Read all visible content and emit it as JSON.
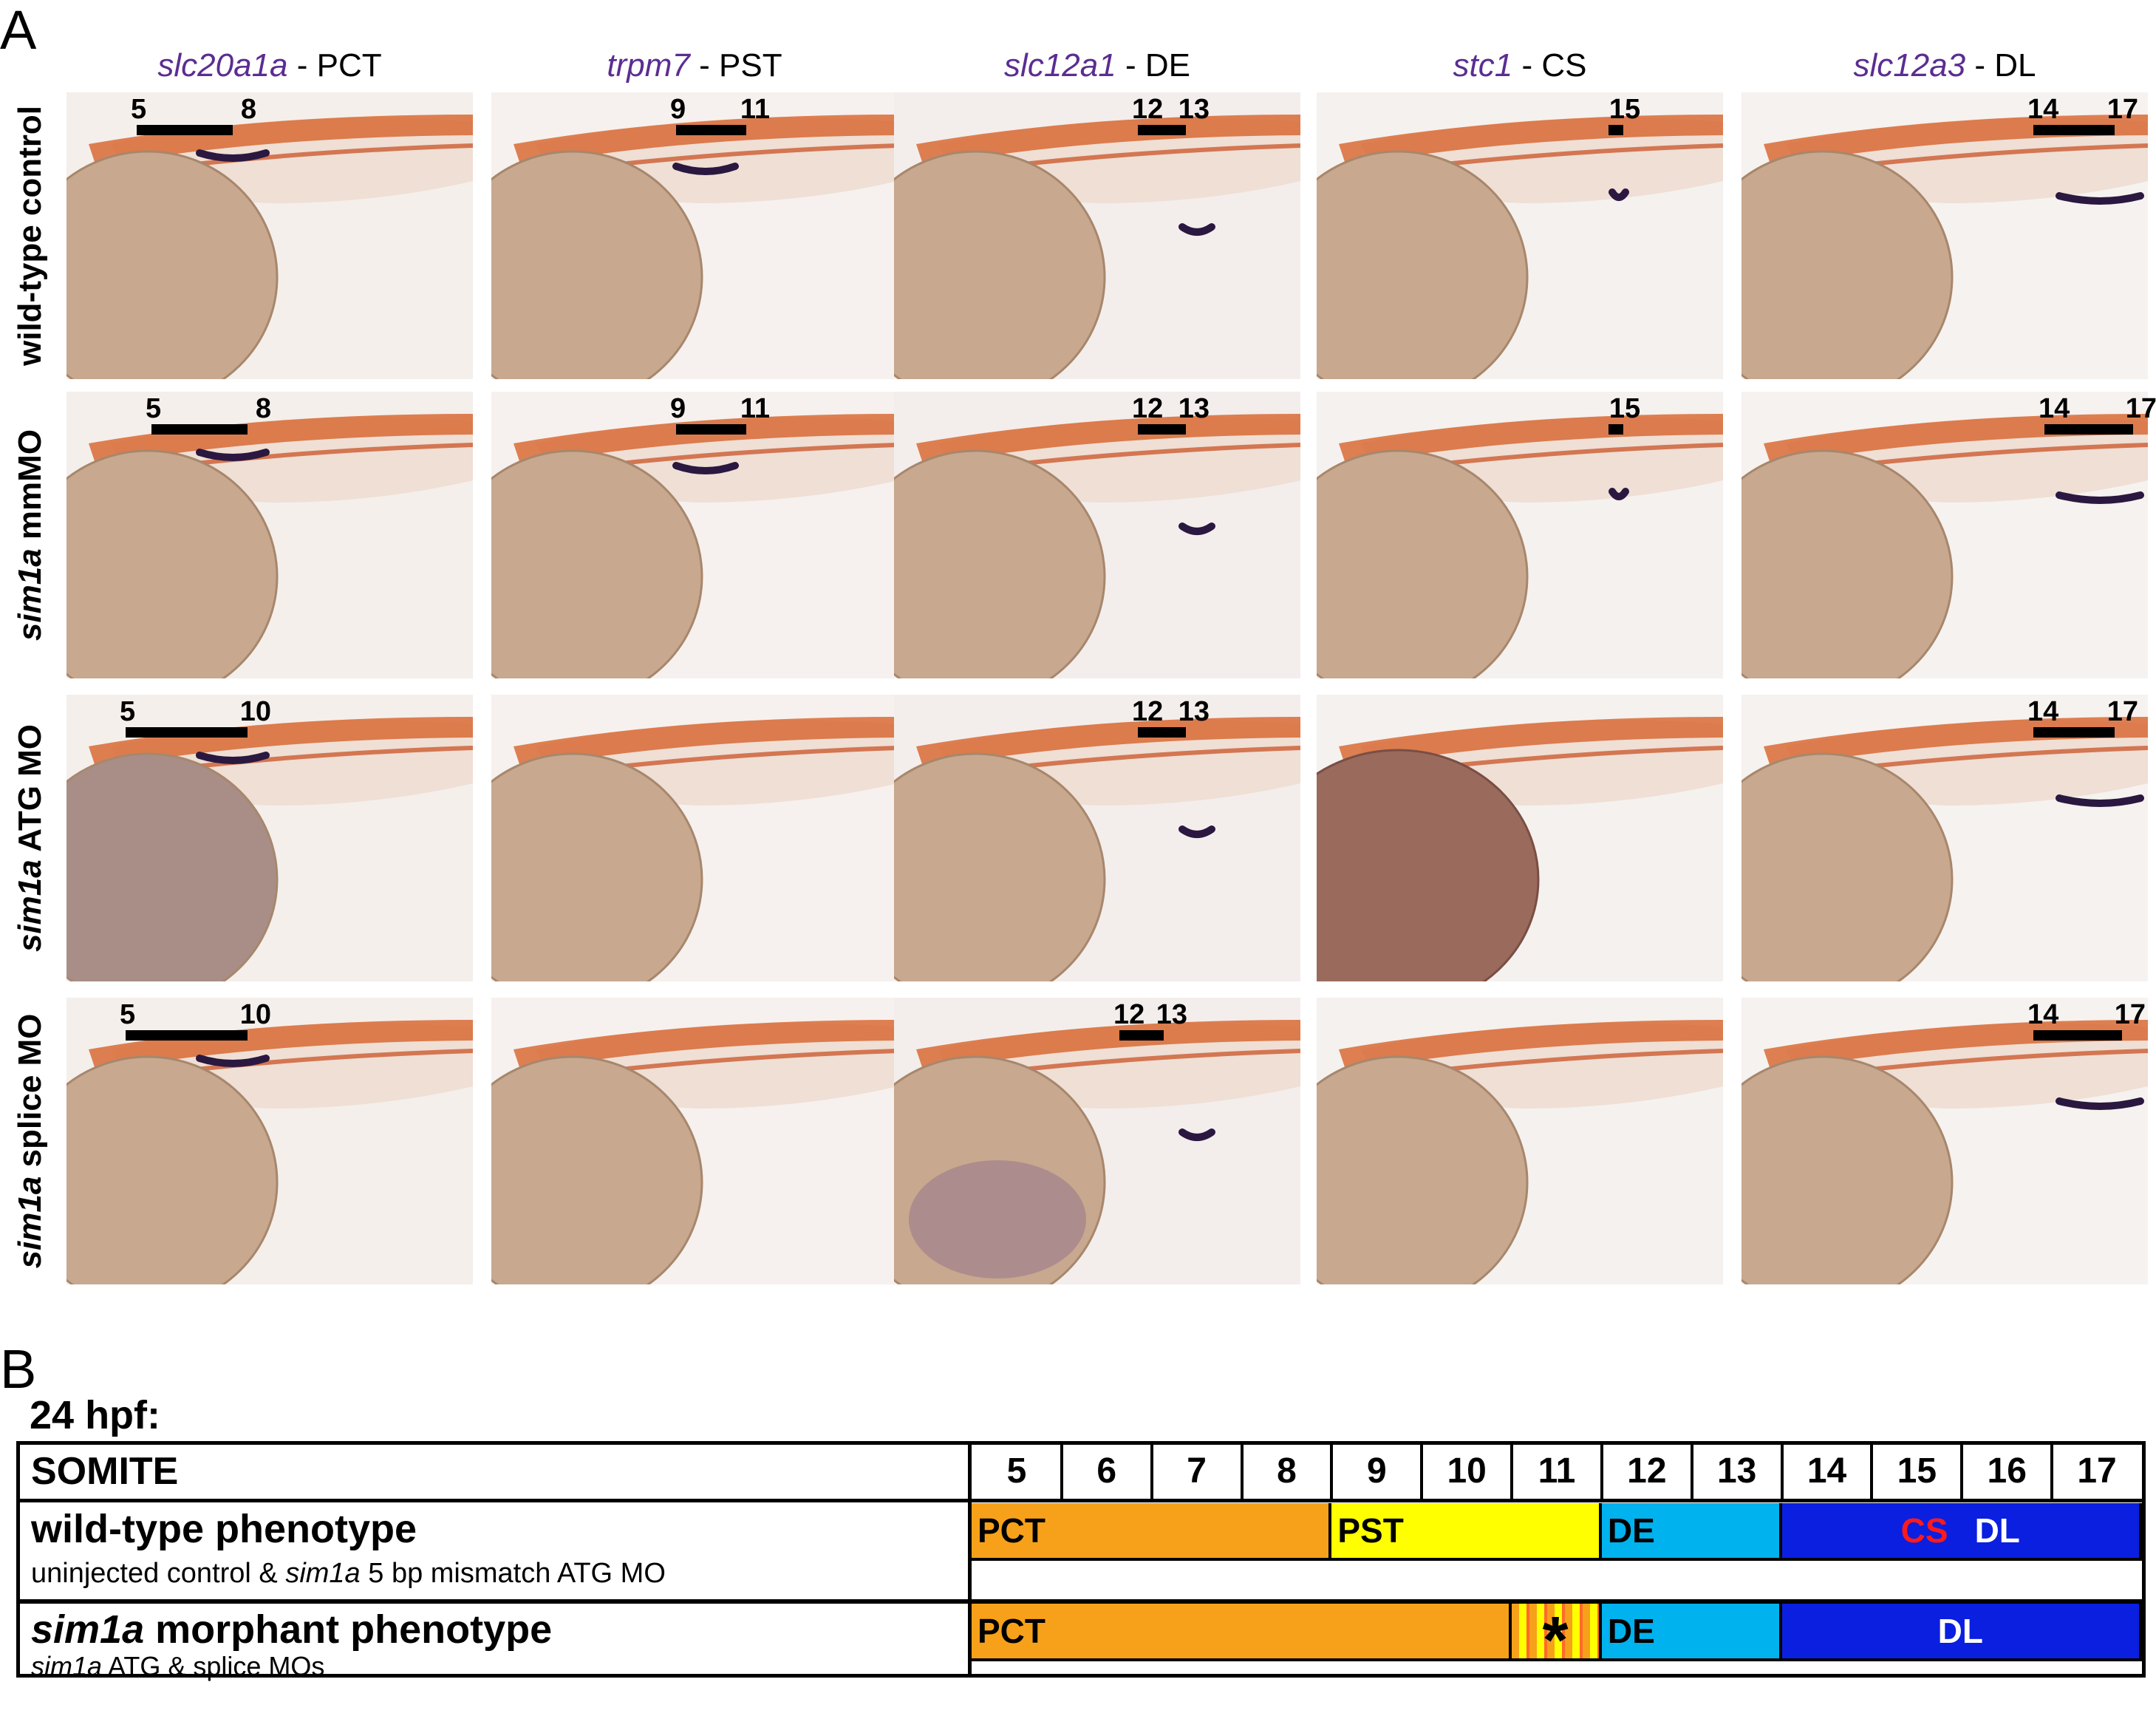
{
  "panel_a_label": "A",
  "panel_b_label": "B",
  "columns": [
    {
      "gene": "slc20a1a",
      "segment": "- PCT"
    },
    {
      "gene": "trpm7",
      "segment": "- PST"
    },
    {
      "gene": "slc12a1",
      "segment": "- DE"
    },
    {
      "gene": "stc1",
      "segment": "- CS"
    },
    {
      "gene": "slc12a3",
      "segment": "- DL"
    }
  ],
  "rows": [
    {
      "italic": "",
      "plain": "wild-type control"
    },
    {
      "italic": "sim1a",
      "plain": " mmMO"
    },
    {
      "italic": "sim1a",
      "plain": " ATG MO"
    },
    {
      "italic": "sim1a",
      "plain": " splice MO"
    }
  ],
  "somite_markers": {
    "r0": [
      {
        "a": "5",
        "b": "8"
      },
      {
        "a": "9",
        "b": "11"
      },
      {
        "a": "12",
        "b": "13"
      },
      {
        "a": "15",
        "b": ""
      },
      {
        "a": "14",
        "b": "17"
      }
    ],
    "r1": [
      {
        "a": "5",
        "b": "8"
      },
      {
        "a": "9",
        "b": "11"
      },
      {
        "a": "12",
        "b": "13"
      },
      {
        "a": "15",
        "b": ""
      },
      {
        "a": "14",
        "b": "17"
      }
    ],
    "r2": [
      {
        "a": "5",
        "b": "10"
      },
      null,
      {
        "a": "12",
        "b": "13"
      },
      null,
      {
        "a": "14",
        "b": "17"
      }
    ],
    "r3": [
      {
        "a": "5",
        "b": "10"
      },
      null,
      {
        "a": "12",
        "b": "13"
      },
      null,
      {
        "a": "14",
        "b": "17"
      }
    ]
  },
  "table": {
    "timepoint": "24 hpf:",
    "header": "SOMITE",
    "somites": [
      "5",
      "6",
      "7",
      "8",
      "9",
      "10",
      "11",
      "12",
      "13",
      "14",
      "15",
      "16",
      "17"
    ],
    "wt_title": "wild-type phenotype",
    "wt_sub_pre": "uninjected control & ",
    "wt_sub_it": "sim1a",
    "wt_sub_post": " 5 bp mismatch ATG MO",
    "mo_title_it": "sim1a",
    "mo_title_post": " morphant phenotype",
    "mo_sub_it": "sim1a",
    "mo_sub_post": " ATG & splice MOs",
    "wt_segments": [
      {
        "label": "PCT",
        "from": 5,
        "to": 8,
        "color": "#f7a11a"
      },
      {
        "label": "PST",
        "from": 9,
        "to": 11,
        "color": "#ffff00"
      },
      {
        "label": "DE",
        "from": 12,
        "to": 13,
        "color": "#00b2ee"
      },
      {
        "label": "DL",
        "from": 14,
        "to": 17,
        "color": "#0a1fe0"
      }
    ],
    "wt_cs_label": "CS",
    "mo_segments": [
      {
        "label": "PCT",
        "from": 5,
        "to": 10,
        "color": "#f7a11a"
      },
      {
        "label": "*",
        "from": 11,
        "to": 11,
        "color": "striped"
      },
      {
        "label": "DE",
        "from": 12,
        "to": 13,
        "color": "#00b2ee"
      },
      {
        "label": "DL",
        "from": 14,
        "to": 17,
        "color": "#0a1fe0"
      }
    ],
    "colors": {
      "cs": "#ff1a1a",
      "gene": "#5b2d91"
    }
  }
}
